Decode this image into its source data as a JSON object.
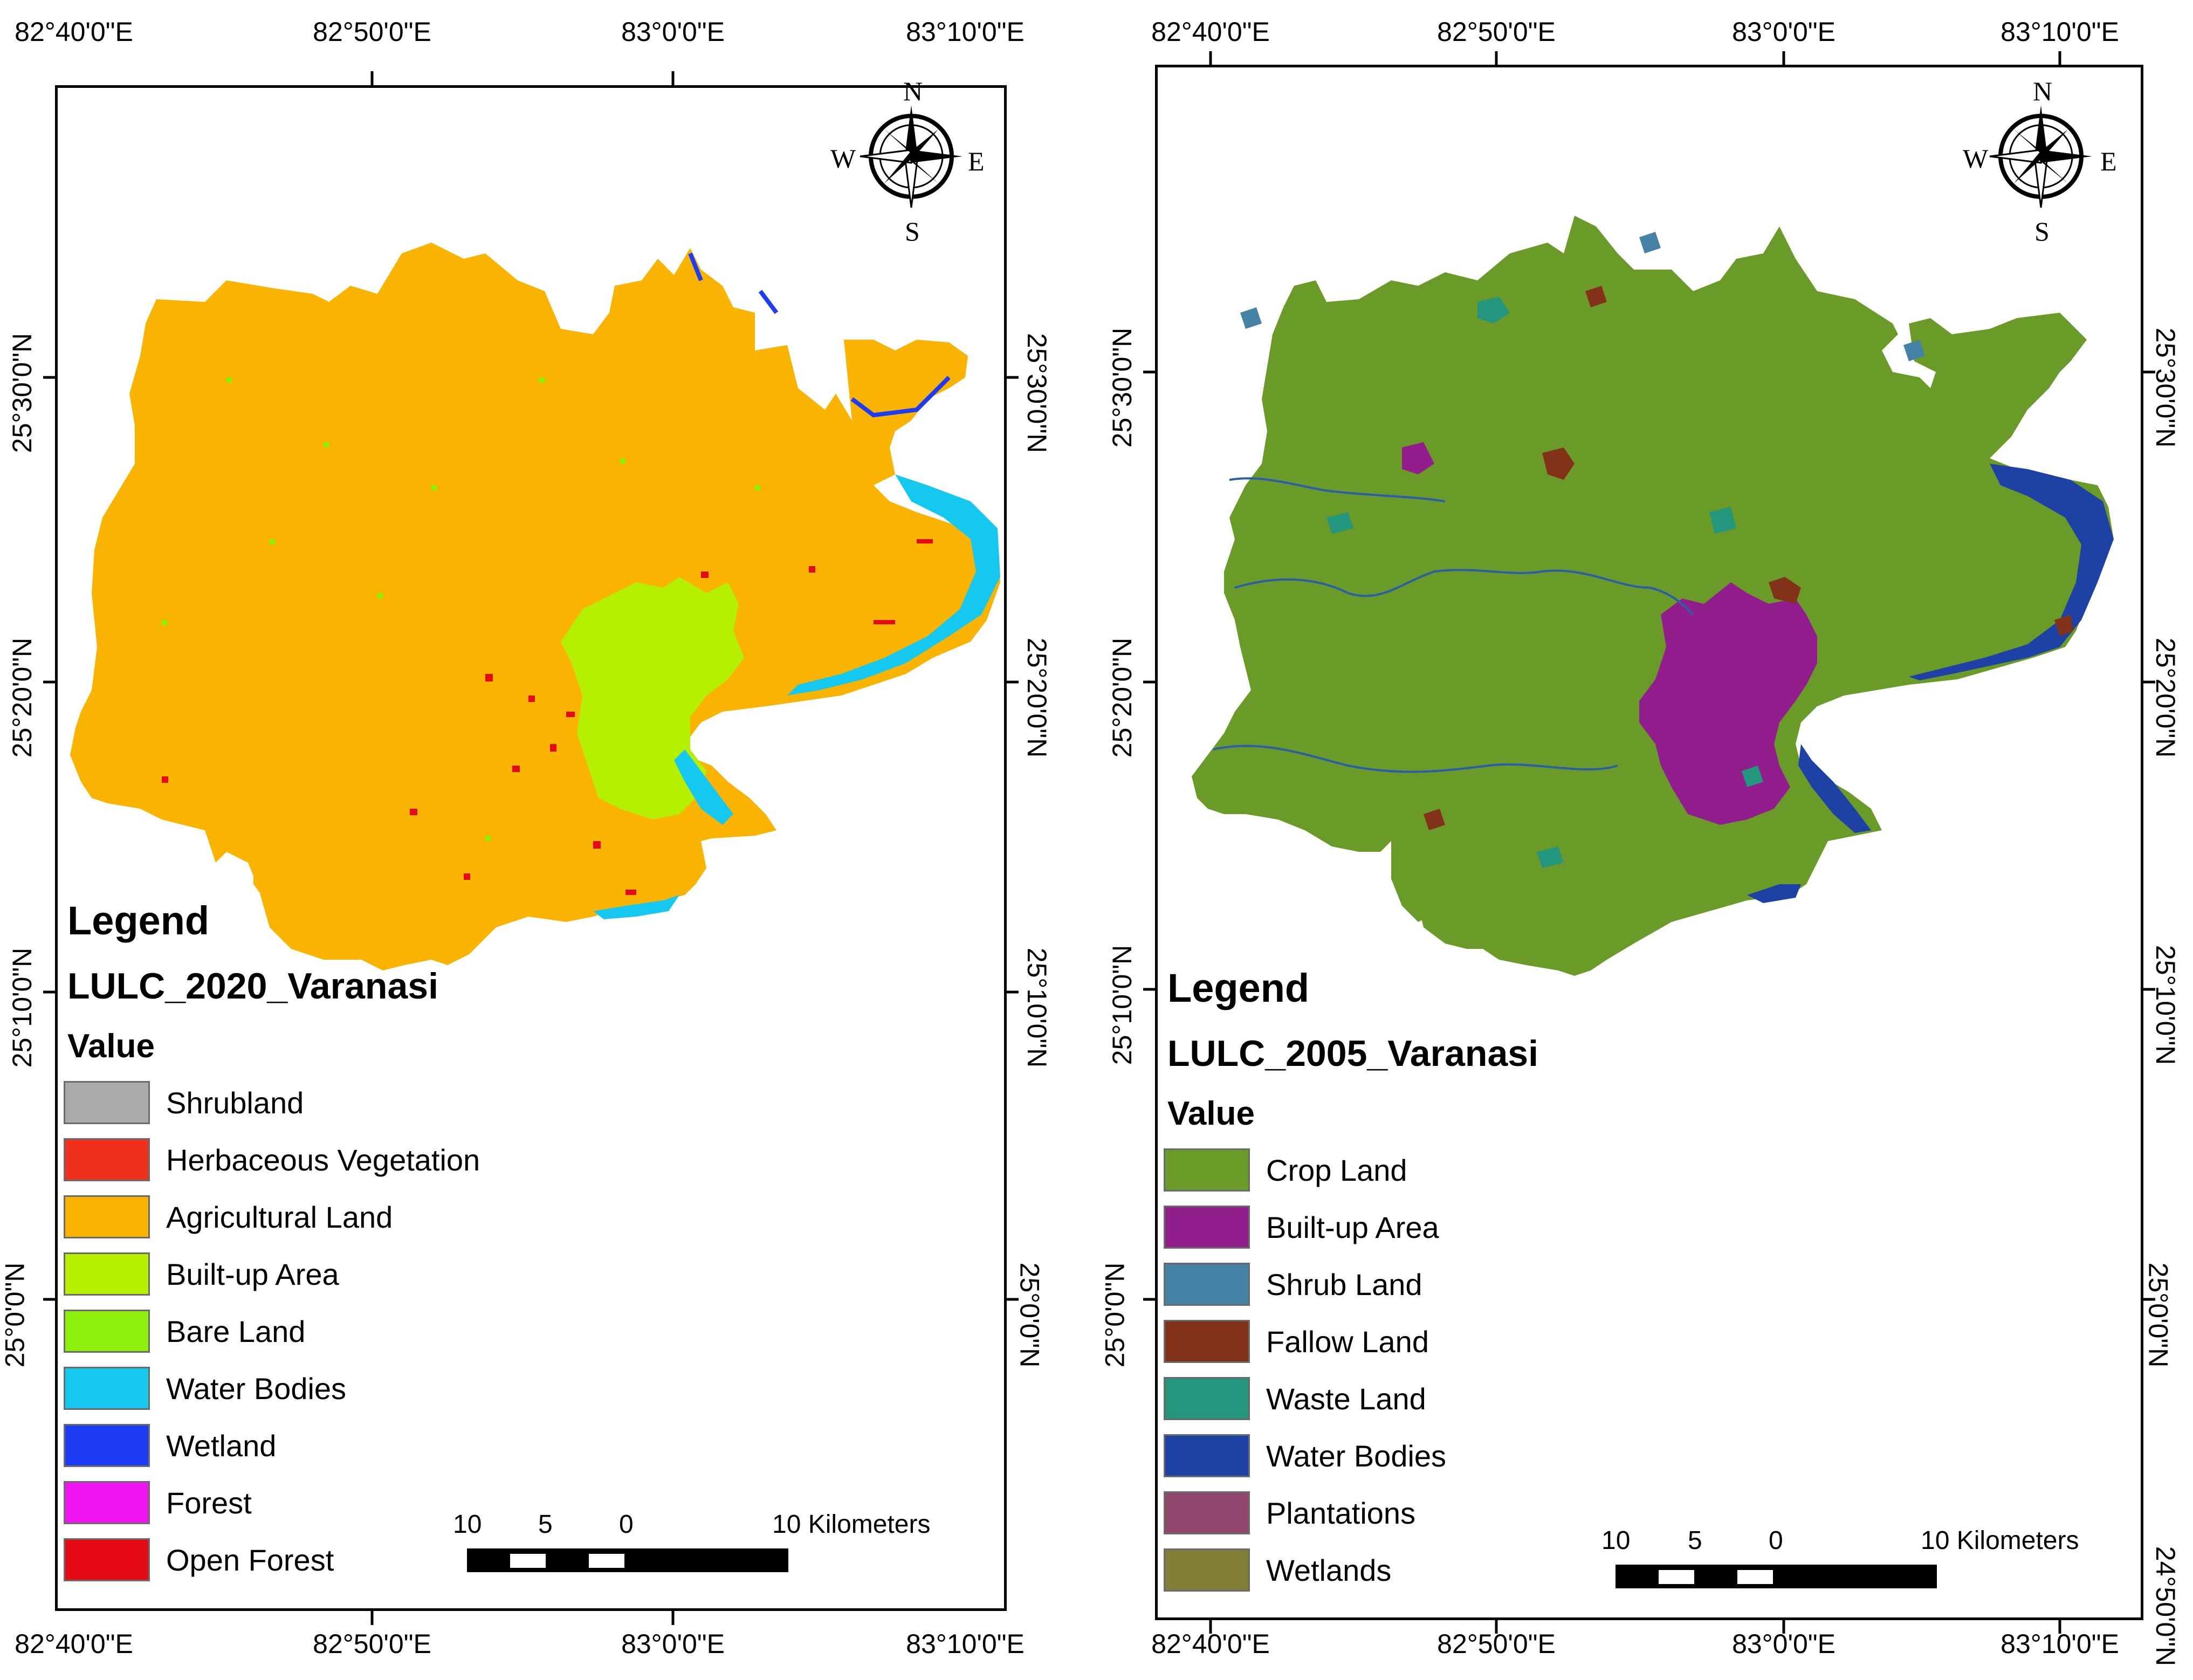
{
  "left_map": {
    "grid": {
      "top_labels": [
        "82°40'0\"E",
        "82°50'0\"E",
        "83°0'0\"E",
        "83°10'0\"E"
      ],
      "bottom_labels": [
        "82°40'0\"E",
        "82°50'0\"E",
        "83°0'0\"E",
        "83°10'0\"E"
      ],
      "left_labels": [
        "25°30'0\"N",
        "25°20'0\"N",
        "25°10'0\"N",
        "25°0'0\"N"
      ],
      "right_labels": [
        "25°30'0\"N",
        "25°20'0\"N",
        "25°10'0\"N",
        "25°0'0\"N"
      ]
    },
    "legend": {
      "title": "Legend",
      "layer": "LULC_2020_Varanasi",
      "field": "Value",
      "items": [
        {
          "label": "Shrubland",
          "color": "#aaaaaa"
        },
        {
          "label": "Herbaceous Vegetation",
          "color": "#f0301a"
        },
        {
          "label": "Agricultural Land",
          "color": "#fab400"
        },
        {
          "label": "Built-up Area",
          "color": "#b4f000"
        },
        {
          "label": "Bare Land",
          "color": "#8cf00a"
        },
        {
          "label": "Water Bodies",
          "color": "#14c8f0"
        },
        {
          "label": "Wetland",
          "color": "#1e3cf5"
        },
        {
          "label": "Forest",
          "color": "#f014f0"
        },
        {
          "label": "Open Forest",
          "color": "#e60a14"
        }
      ]
    },
    "scalebar": {
      "labels": [
        "10",
        "5",
        "0"
      ],
      "end_label": "10 Kilometers"
    },
    "compass": {
      "n": "N",
      "s": "S",
      "e": "E",
      "w": "W"
    }
  },
  "right_map": {
    "grid": {
      "top_labels": [
        "82°40'0\"E",
        "82°50'0\"E",
        "83°0'0\"E",
        "83°10'0\"E"
      ],
      "bottom_labels": [
        "82°40'0\"E",
        "82°50'0\"E",
        "83°0'0\"E",
        "83°10'0\"E"
      ],
      "left_labels": [
        "25°30'0\"N",
        "25°20'0\"N",
        "25°10'0\"N",
        "25°0'0\"N"
      ],
      "right_labels": [
        "25°30'0\"N",
        "25°20'0\"N",
        "25°10'0\"N",
        "25°0'0\"N",
        "24°50'0\"N"
      ]
    },
    "legend": {
      "title": "Legend",
      "layer": "LULC_2005_Varanasi",
      "field": "Value",
      "items": [
        {
          "label": "Crop Land",
          "color": "#6a9b28"
        },
        {
          "label": "Built-up Area",
          "color": "#911e8c"
        },
        {
          "label": "Shrub Land",
          "color": "#4682a5"
        },
        {
          "label": "Fallow Land",
          "color": "#823219"
        },
        {
          "label": "Waste Land",
          "color": "#23967d"
        },
        {
          "label": "Water Bodies",
          "color": "#1e41a5"
        },
        {
          "label": "Plantations",
          "color": "#91466e"
        },
        {
          "label": "Wetlands",
          "color": "#827d37"
        }
      ]
    },
    "scalebar": {
      "labels": [
        "10",
        "5",
        "0"
      ],
      "end_label": "10 Kilometers"
    },
    "compass": {
      "n": "N",
      "s": "S",
      "e": "E",
      "w": "W"
    }
  }
}
